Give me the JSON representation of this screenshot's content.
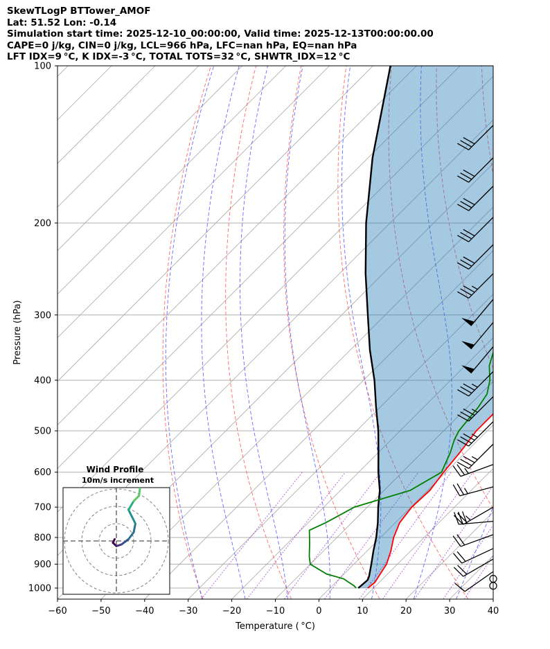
{
  "header": {
    "line1": "SkewTLogP BTTower_AMOF",
    "line2": "Lat: 51.52   Lon: -0.14",
    "line3": "Simulation start time: 2025-12-10_00:00:00, Valid time: 2025-12-13T00:00:00.00",
    "line4": "CAPE=0 j/kg, CIN=0 j/kg, LCL=966 hPa, LFC=nan hPa, EQ=nan hPa",
    "line5": "LFT IDX=9 °C, K IDX=-3 °C, TOTAL TOTS=32 °C, SHWTR_IDX=12 °C"
  },
  "chart_data": {
    "type": "skewt-logp",
    "xlabel": "Temperature ( °C)",
    "ylabel": "Pressure (hPa)",
    "xlim": [
      -60,
      40
    ],
    "ylim": [
      1050,
      100
    ],
    "x_ticks": [
      -60,
      -50,
      -40,
      -30,
      -20,
      -10,
      0,
      10,
      20,
      30,
      40
    ],
    "x_tick_labels": [
      "−60",
      "−50",
      "−40",
      "−30",
      "−20",
      "−10",
      "0",
      "10",
      "20",
      "30",
      "40"
    ],
    "y_ticks": [
      1000,
      900,
      800,
      700,
      600,
      500,
      400,
      300,
      200,
      100
    ],
    "y_tick_labels": [
      "1000",
      "900",
      "800",
      "700",
      "600",
      "500",
      "400",
      "300",
      "200",
      "100"
    ],
    "temperature": {
      "color": "#ff0000",
      "points": [
        [
          1000,
          8.7
        ],
        [
          975,
          9.0
        ],
        [
          950,
          8.5
        ],
        [
          900,
          7.5
        ],
        [
          850,
          5.5
        ],
        [
          800,
          3.0
        ],
        [
          750,
          1.0
        ],
        [
          700,
          0.2
        ],
        [
          650,
          0.5
        ],
        [
          600,
          -0.5
        ],
        [
          550,
          -1.3
        ],
        [
          500,
          -2.5
        ],
        [
          450,
          -2.5
        ],
        [
          425,
          -3.5
        ],
        [
          400,
          -5.0
        ],
        [
          375,
          -6.5
        ],
        [
          350,
          -8.0
        ],
        [
          335,
          -9.5
        ],
        [
          320,
          -9.5
        ],
        [
          300,
          -9.5
        ],
        [
          285,
          -10.5
        ],
        [
          270,
          -11.5
        ],
        [
          250,
          -13.5
        ],
        [
          230,
          -13.5
        ],
        [
          210,
          -12.5
        ],
        [
          200,
          -12.0
        ],
        [
          185,
          -10.0
        ],
        [
          170,
          -8.0
        ],
        [
          155,
          -7.0
        ],
        [
          140,
          -6.0
        ],
        [
          125,
          -6.0
        ],
        [
          110,
          -5.5
        ],
        [
          100,
          -5.0
        ]
      ]
    },
    "dewpoint": {
      "color": "#008000",
      "points": [
        [
          1000,
          6.0
        ],
        [
          990,
          5.0
        ],
        [
          975,
          3.0
        ],
        [
          960,
          1.0
        ],
        [
          940,
          -4.0
        ],
        [
          900,
          -10.0
        ],
        [
          870,
          -12.0
        ],
        [
          820,
          -15.0
        ],
        [
          775,
          -18.0
        ],
        [
          750,
          -16.0
        ],
        [
          725,
          -14.5
        ],
        [
          700,
          -13.0
        ],
        [
          680,
          -9.5
        ],
        [
          650,
          -4.0
        ],
        [
          600,
          -1.0
        ],
        [
          550,
          -3.5
        ],
        [
          520,
          -5.5
        ],
        [
          500,
          -6.5
        ],
        [
          450,
          -7.5
        ],
        [
          425,
          -8.5
        ],
        [
          400,
          -11.0
        ],
        [
          375,
          -14.5
        ],
        [
          350,
          -17.0
        ],
        [
          335,
          -19.0
        ],
        [
          320,
          -19.0
        ],
        [
          300,
          -20.0
        ],
        [
          285,
          -22.0
        ],
        [
          270,
          -23.5
        ],
        [
          250,
          -25.5
        ],
        [
          230,
          -27.5
        ],
        [
          215,
          -31.5
        ],
        [
          205,
          -34.0
        ],
        [
          200,
          -35.5
        ],
        [
          185,
          -36.0
        ],
        [
          170,
          -36.5
        ],
        [
          150,
          -36.5
        ],
        [
          130,
          -36.5
        ],
        [
          115,
          -36.5
        ],
        [
          100,
          -36.5
        ]
      ]
    },
    "parcel": {
      "color": "#000000",
      "points": [
        [
          1000,
          6.5
        ],
        [
          966,
          6.8
        ],
        [
          950,
          6.3
        ],
        [
          900,
          4.0
        ],
        [
          850,
          1.5
        ],
        [
          800,
          -1.0
        ],
        [
          750,
          -4.0
        ],
        [
          700,
          -7.5
        ],
        [
          650,
          -11.0
        ],
        [
          600,
          -15.5
        ],
        [
          550,
          -20.0
        ],
        [
          500,
          -25.0
        ],
        [
          450,
          -31.0
        ],
        [
          400,
          -37.5
        ],
        [
          350,
          -45.5
        ],
        [
          300,
          -54.0
        ],
        [
          250,
          -64.0
        ],
        [
          200,
          -75.5
        ],
        [
          150,
          -89.0
        ],
        [
          100,
          -106.0
        ]
      ]
    },
    "barbs": [
      {
        "p": 990,
        "speed": 0,
        "dir": 0
      },
      {
        "p": 960,
        "speed": 0,
        "dir": 0
      },
      {
        "p": 930,
        "speed": 10,
        "dir": 235
      },
      {
        "p": 880,
        "speed": 20,
        "dir": 240
      },
      {
        "p": 840,
        "speed": 20,
        "dir": 245
      },
      {
        "p": 790,
        "speed": 20,
        "dir": 250
      },
      {
        "p": 745,
        "speed": 30,
        "dir": 265
      },
      {
        "p": 700,
        "speed": 25,
        "dir": 240
      },
      {
        "p": 640,
        "speed": 25,
        "dir": 255
      },
      {
        "p": 580,
        "speed": 25,
        "dir": 250
      },
      {
        "p": 530,
        "speed": 35,
        "dir": 225
      },
      {
        "p": 480,
        "speed": 35,
        "dir": 225
      },
      {
        "p": 430,
        "speed": 35,
        "dir": 225
      },
      {
        "p": 385,
        "speed": 35,
        "dir": 225
      },
      {
        "p": 345,
        "speed": 50,
        "dir": 220
      },
      {
        "p": 310,
        "speed": 50,
        "dir": 220
      },
      {
        "p": 280,
        "speed": 50,
        "dir": 220
      },
      {
        "p": 250,
        "speed": 35,
        "dir": 225
      },
      {
        "p": 220,
        "speed": 30,
        "dir": 225
      },
      {
        "p": 195,
        "speed": 30,
        "dir": 225
      },
      {
        "p": 170,
        "speed": 30,
        "dir": 225
      },
      {
        "p": 150,
        "speed": 30,
        "dir": 225
      },
      {
        "p": 130,
        "speed": 30,
        "dir": 225
      }
    ],
    "hodograph": {
      "title": "Wind Profile",
      "subtitle": "10m/s increment",
      "ring_step": 10,
      "rings": 3,
      "points": [
        [
          -1,
          1
        ],
        [
          -2,
          -1
        ],
        [
          0,
          -3
        ],
        [
          3,
          -2
        ],
        [
          7,
          1
        ],
        [
          10,
          5
        ],
        [
          11,
          10
        ],
        [
          7,
          18
        ],
        [
          10,
          23
        ],
        [
          13,
          26
        ],
        [
          14,
          33
        ],
        [
          18,
          36
        ],
        [
          20,
          40
        ]
      ]
    },
    "dry_adiabats_theta_c": [
      -30,
      -10,
      10,
      30,
      50,
      70,
      90,
      110,
      130,
      150,
      170,
      190,
      210
    ],
    "moist_adiabats_start_c": [
      -30,
      -20,
      -10,
      0,
      10,
      20,
      30
    ],
    "mixing_ratios_gkg": [
      0.4,
      1,
      2,
      4,
      7,
      10,
      16,
      24,
      32
    ]
  }
}
